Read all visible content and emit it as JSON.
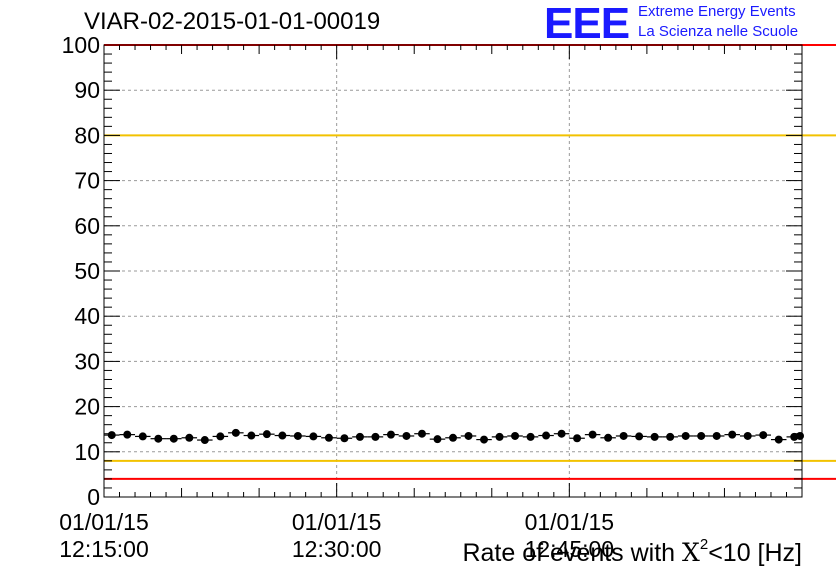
{
  "title": "VIAR-02-2015-01-01-00019",
  "logo": {
    "mark": "EEE",
    "line1": "Extreme Energy Events",
    "line2": "La Scienza nelle Scuole",
    "color": "#1a1aff"
  },
  "x_title": {
    "prefix": "Rate of events with ",
    "symbol": "X",
    "superscript": "2",
    "suffix": "<10 [Hz]"
  },
  "chart_data": {
    "type": "scatter",
    "title": "VIAR-02-2015-01-01-00019",
    "xlabel": "Rate of events with X^2<10 [Hz]",
    "ylabel": "",
    "x_unit": "minutes after 12:15:00 on 01/01/15",
    "xlim": [
      0,
      45
    ],
    "ylim": [
      0,
      100
    ],
    "grid": true,
    "x_ticks": [
      {
        "value": 0,
        "date": "01/01/15",
        "time": "12:15:00"
      },
      {
        "value": 15,
        "date": "01/01/15",
        "time": "12:30:00"
      },
      {
        "value": 30,
        "date": "01/01/15",
        "time": "12:45:00"
      }
    ],
    "y_ticks": [
      0,
      10,
      20,
      30,
      40,
      50,
      60,
      70,
      80,
      90,
      100
    ],
    "reference_lines": [
      {
        "y": 100,
        "color": "#ff0000"
      },
      {
        "y": 80,
        "color": "#f2c200"
      },
      {
        "y": 8,
        "color": "#f2c200"
      },
      {
        "y": 4,
        "color": "#ff0000"
      }
    ],
    "series": [
      {
        "color": "#000000",
        "error": 0.6,
        "points": [
          {
            "x": 0.5,
            "y": 13.7
          },
          {
            "x": 1.5,
            "y": 13.8
          },
          {
            "x": 2.5,
            "y": 13.4
          },
          {
            "x": 3.5,
            "y": 12.9
          },
          {
            "x": 4.5,
            "y": 12.9
          },
          {
            "x": 5.5,
            "y": 13.1
          },
          {
            "x": 6.5,
            "y": 12.6
          },
          {
            "x": 7.5,
            "y": 13.4
          },
          {
            "x": 8.5,
            "y": 14.2
          },
          {
            "x": 9.5,
            "y": 13.6
          },
          {
            "x": 10.5,
            "y": 13.9
          },
          {
            "x": 11.5,
            "y": 13.6
          },
          {
            "x": 12.5,
            "y": 13.5
          },
          {
            "x": 13.5,
            "y": 13.4
          },
          {
            "x": 14.5,
            "y": 13.1
          },
          {
            "x": 15.5,
            "y": 13.0
          },
          {
            "x": 16.5,
            "y": 13.3
          },
          {
            "x": 17.5,
            "y": 13.3
          },
          {
            "x": 18.5,
            "y": 13.8
          },
          {
            "x": 19.5,
            "y": 13.5
          },
          {
            "x": 20.5,
            "y": 14.0
          },
          {
            "x": 21.5,
            "y": 12.8
          },
          {
            "x": 22.5,
            "y": 13.1
          },
          {
            "x": 23.5,
            "y": 13.5
          },
          {
            "x": 24.5,
            "y": 12.7
          },
          {
            "x": 25.5,
            "y": 13.3
          },
          {
            "x": 26.5,
            "y": 13.5
          },
          {
            "x": 27.5,
            "y": 13.3
          },
          {
            "x": 28.5,
            "y": 13.6
          },
          {
            "x": 29.5,
            "y": 14.0
          },
          {
            "x": 30.5,
            "y": 13.0
          },
          {
            "x": 31.5,
            "y": 13.8
          },
          {
            "x": 32.5,
            "y": 13.1
          },
          {
            "x": 33.5,
            "y": 13.5
          },
          {
            "x": 34.5,
            "y": 13.4
          },
          {
            "x": 35.5,
            "y": 13.3
          },
          {
            "x": 36.5,
            "y": 13.3
          },
          {
            "x": 37.5,
            "y": 13.5
          },
          {
            "x": 38.5,
            "y": 13.5
          },
          {
            "x": 39.5,
            "y": 13.5
          },
          {
            "x": 40.5,
            "y": 13.8
          },
          {
            "x": 41.5,
            "y": 13.5
          },
          {
            "x": 42.5,
            "y": 13.7
          },
          {
            "x": 43.5,
            "y": 12.7
          },
          {
            "x": 44.5,
            "y": 13.3
          },
          {
            "x": 45.5,
            "y": 13.5
          }
        ]
      }
    ]
  }
}
